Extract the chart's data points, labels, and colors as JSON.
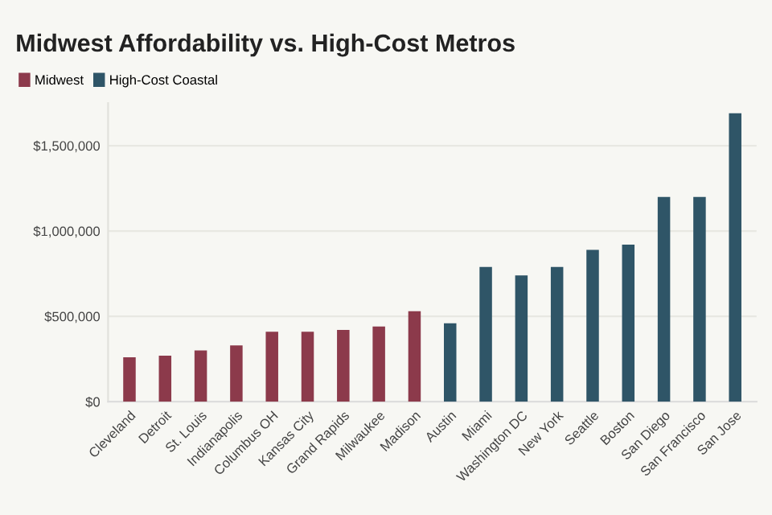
{
  "chart_data": {
    "type": "bar",
    "title": "Midwest Affordability vs. High-Cost Metros",
    "categories": [
      "Cleveland",
      "Detroit",
      "St. Louis",
      "Indianapolis",
      "Columbus OH",
      "Kansas City",
      "Grand Rapids",
      "Milwaukee",
      "Madison",
      "Austin",
      "Miami",
      "Washington DC",
      "New York",
      "Seattle",
      "Boston",
      "San Diego",
      "San Francisco",
      "San Jose"
    ],
    "series": [
      {
        "name": "Midwest",
        "color": "#8c3a4b",
        "values": [
          260000,
          270000,
          300000,
          330000,
          410000,
          410000,
          420000,
          440000,
          530000,
          null,
          null,
          null,
          null,
          null,
          null,
          null,
          null,
          null
        ]
      },
      {
        "name": "High-Cost Coastal",
        "color": "#2f5567",
        "values": [
          null,
          null,
          null,
          null,
          null,
          null,
          null,
          null,
          null,
          460000,
          790000,
          740000,
          790000,
          890000,
          920000,
          1200000,
          1200000,
          1690000
        ]
      }
    ],
    "ylim": [
      0,
      1750000
    ],
    "yticks": [
      {
        "value": 0,
        "label": "$0"
      },
      {
        "value": 500000,
        "label": "$500,000"
      },
      {
        "value": 1000000,
        "label": "$1,000,000"
      },
      {
        "value": 1500000,
        "label": "$1,500,000"
      }
    ],
    "grid": "y",
    "legend": "top left"
  }
}
